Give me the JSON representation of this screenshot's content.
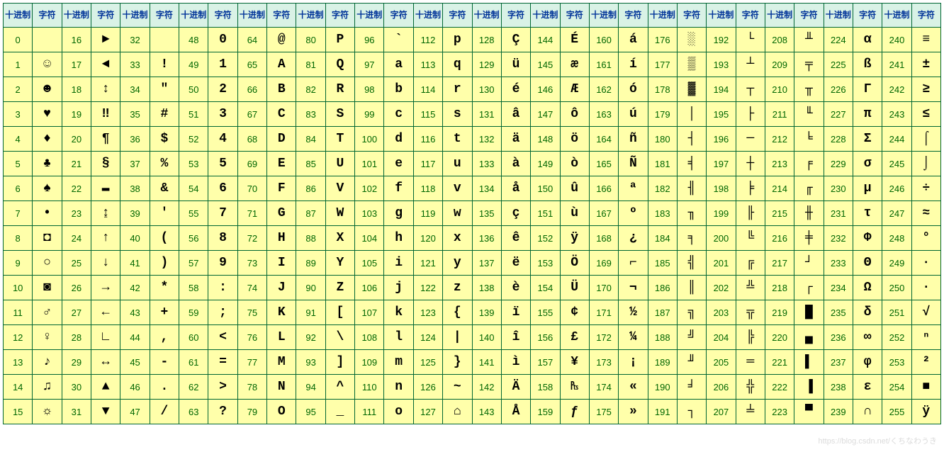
{
  "headers": {
    "dec": "十进制",
    "char": "字符"
  },
  "column_pairs": 16,
  "rows_per_column": 16,
  "colors": {
    "border": "#006633",
    "header_bg": "#d9f2e6",
    "header_text": "#003399",
    "cell_bg": "#ffffaa",
    "dec_text": "#006600",
    "char_text": "#000000"
  },
  "chars": [
    " ",
    "☺",
    "☻",
    "♥",
    "♦",
    "♣",
    "♠",
    "•",
    "◘",
    "○",
    "◙",
    "♂",
    "♀",
    "♪",
    "♫",
    "☼",
    "►",
    "◄",
    "↕",
    "‼",
    "¶",
    "§",
    "▬",
    "↨",
    "↑",
    "↓",
    "→",
    "←",
    "∟",
    "↔",
    "▲",
    "▼",
    " ",
    "!",
    "\"",
    "#",
    "$",
    "%",
    "&",
    "'",
    "(",
    ")",
    "*",
    "+",
    ",",
    "-",
    ".",
    "/",
    "0",
    "1",
    "2",
    "3",
    "4",
    "5",
    "6",
    "7",
    "8",
    "9",
    ":",
    ";",
    "<",
    "=",
    ">",
    "?",
    "@",
    "A",
    "B",
    "C",
    "D",
    "E",
    "F",
    "G",
    "H",
    "I",
    "J",
    "K",
    "L",
    "M",
    "N",
    "O",
    "P",
    "Q",
    "R",
    "S",
    "T",
    "U",
    "V",
    "W",
    "X",
    "Y",
    "Z",
    "[",
    "\\",
    "]",
    "^",
    "_",
    "`",
    "a",
    "b",
    "c",
    "d",
    "e",
    "f",
    "g",
    "h",
    "i",
    "j",
    "k",
    "l",
    "m",
    "n",
    "o",
    "p",
    "q",
    "r",
    "s",
    "t",
    "u",
    "v",
    "w",
    "x",
    "y",
    "z",
    "{",
    "|",
    "}",
    "~",
    "⌂",
    "Ç",
    "ü",
    "é",
    "â",
    "ä",
    "à",
    "å",
    "ç",
    "ê",
    "ë",
    "è",
    "ï",
    "î",
    "ì",
    "Ä",
    "Å",
    "É",
    "æ",
    "Æ",
    "ô",
    "ö",
    "ò",
    "û",
    "ù",
    "ÿ",
    "Ö",
    "Ü",
    "¢",
    "£",
    "¥",
    "₧",
    "ƒ",
    "á",
    "í",
    "ó",
    "ú",
    "ñ",
    "Ñ",
    "ª",
    "º",
    "¿",
    "⌐",
    "¬",
    "½",
    "¼",
    "¡",
    "«",
    "»",
    "░",
    "▒",
    "▓",
    "│",
    "┤",
    "╡",
    "╢",
    "╖",
    "╕",
    "╣",
    "║",
    "╗",
    "╝",
    "╜",
    "╛",
    "┐",
    "└",
    "┴",
    "┬",
    "├",
    "─",
    "┼",
    "╞",
    "╟",
    "╚",
    "╔",
    "╩",
    "╦",
    "╠",
    "═",
    "╬",
    "╧",
    "╨",
    "╤",
    "╥",
    "╙",
    "╘",
    "╒",
    "╓",
    "╫",
    "╪",
    "┘",
    "┌",
    "█",
    "▄",
    "▌",
    "▐",
    "▀",
    "α",
    "ß",
    "Γ",
    "π",
    "Σ",
    "σ",
    "µ",
    "τ",
    "Φ",
    "Θ",
    "Ω",
    "δ",
    "∞",
    "φ",
    "ε",
    "∩",
    "≡",
    "±",
    "≥",
    "≤",
    "⌠",
    "⌡",
    "÷",
    "≈",
    "°",
    "∙",
    "·",
    "√",
    "ⁿ",
    "²",
    "■",
    "ÿ"
  ],
  "watermark": "https://blog.csdn.net/くちなわうき"
}
